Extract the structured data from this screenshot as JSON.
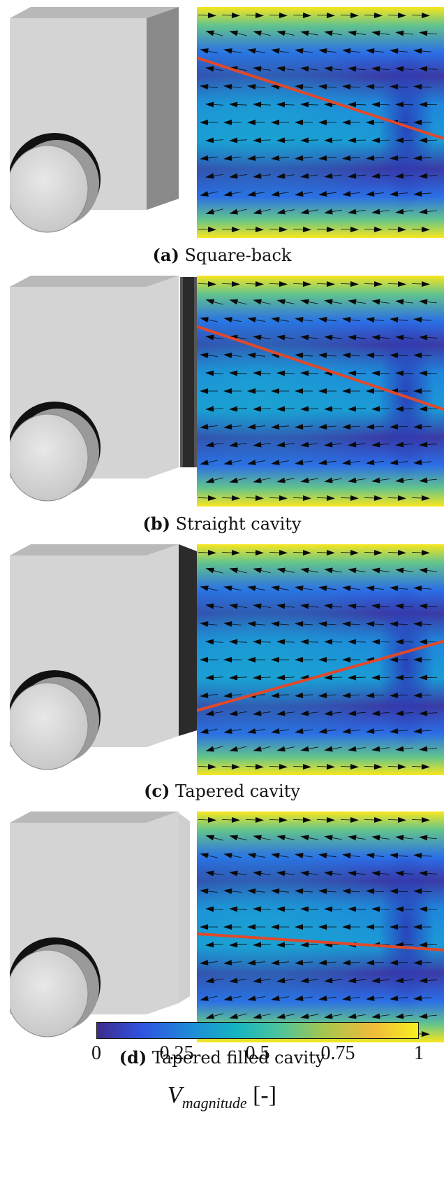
{
  "panels": [
    {
      "letter": "(a)",
      "title": "Square-back",
      "cavity": "none",
      "line_y_left": 0.22,
      "line_y_right": 0.57
    },
    {
      "letter": "(b)",
      "title": "Straight cavity",
      "cavity": "straight",
      "line_y_left": 0.22,
      "line_y_right": 0.58
    },
    {
      "letter": "(c)",
      "title": "Tapered cavity",
      "cavity": "tapered",
      "line_y_left": 0.72,
      "line_y_right": 0.42
    },
    {
      "letter": "(d)",
      "title": "Tapered filled cavity",
      "cavity": "tapered-filled",
      "line_y_left": 0.53,
      "line_y_right": 0.6
    }
  ],
  "colorbar": {
    "ticks": [
      "0",
      "0.25",
      "0.5",
      "0.75",
      "1"
    ],
    "label_main": "V",
    "label_sub": "magnitude",
    "label_unit": "[-]",
    "colors": [
      "#3e2b8c",
      "#2f54e0",
      "#1f8ad8",
      "#13b3c1",
      "#4dc49a",
      "#a6c64e",
      "#f0bb3a",
      "#f8ee1f"
    ]
  },
  "colors": {
    "body": "#d4d4d4",
    "body_top": "#b9b9b9",
    "body_side": "#8a8a8a",
    "line": "#e0492b",
    "arrow": "#0a0a0a"
  }
}
